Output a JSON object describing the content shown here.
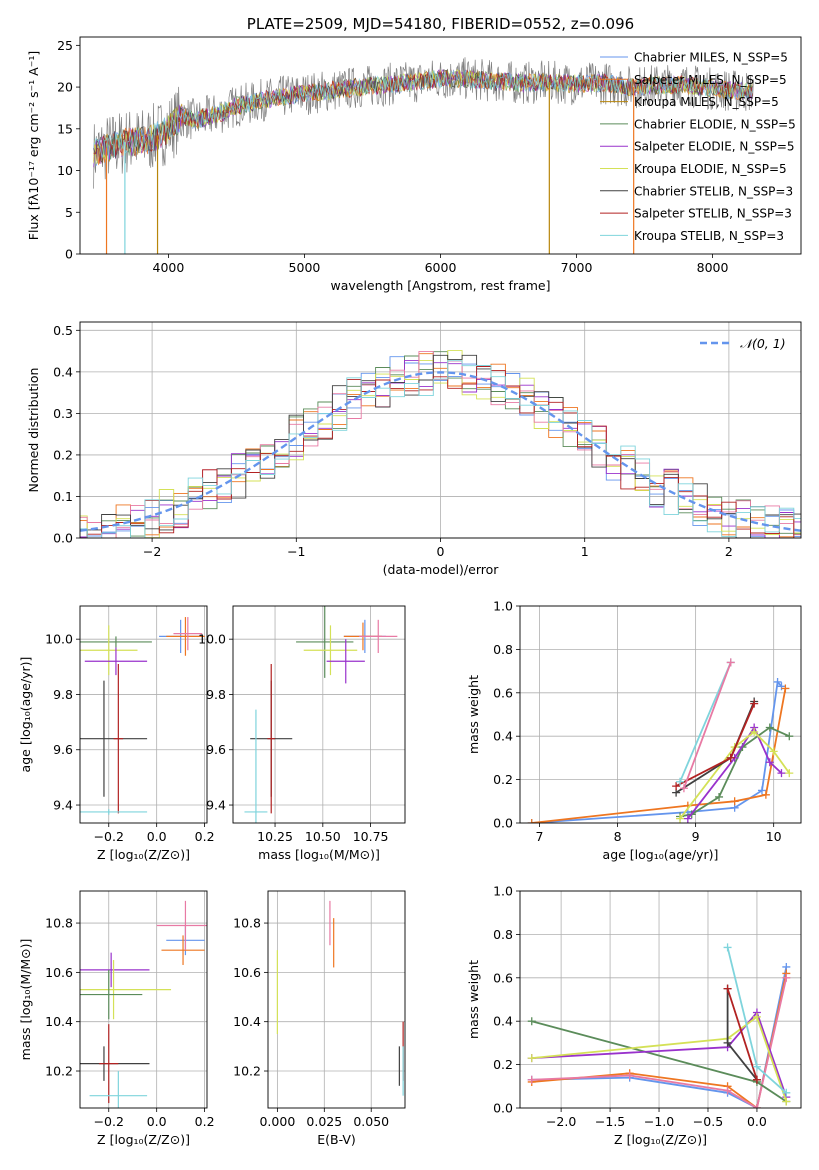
{
  "chart_data": [
    {
      "id": "spectrum",
      "type": "line",
      "title": "PLATE=2509, MJD=54180, FIBERID=0552, z=0.096",
      "xlabel": "wavelength [Angstrom, rest frame]",
      "ylabel": "Flux [fλ10⁻¹⁷ erg cm⁻² s⁻¹ A⁻¹]",
      "xlim": [
        3350,
        8650
      ],
      "ylim": [
        0,
        26
      ],
      "xticks": [
        "4000",
        "5000",
        "6000",
        "7000",
        "8000"
      ],
      "yticks": [
        "0",
        "5",
        "10",
        "15",
        "20",
        "25"
      ],
      "legend_position": "upper-right",
      "data_curve": {
        "color": "#808080",
        "x": [
          3450,
          3500,
          3600,
          3700,
          3800,
          3900,
          4000,
          4100,
          4200,
          4300,
          4400,
          4500,
          4600,
          4700,
          4800,
          4900,
          5000,
          5200,
          5400,
          5600,
          5800,
          6000,
          6200,
          6400,
          6600,
          6800,
          7000,
          7200,
          7400,
          7600,
          7800,
          8000,
          8200,
          8300
        ],
        "y": [
          12,
          12.5,
          13,
          13.5,
          13.5,
          14,
          15,
          16.5,
          16,
          16.5,
          17,
          17.8,
          18,
          18.5,
          18.7,
          19,
          19.2,
          19.6,
          20,
          20.3,
          20.6,
          21,
          21,
          20.7,
          20.5,
          20.6,
          20.4,
          20.5,
          20,
          20.2,
          20.3,
          19.8,
          19.5,
          19.5
        ]
      },
      "series": [
        {
          "name": "Chabrier MILES, N_SSP=5",
          "color": "#6495ed"
        },
        {
          "name": "Salpeter MILES, N_SSP=5",
          "color": "#ee7621"
        },
        {
          "name": "Kroupa MILES, N_SSP=5",
          "color": "#b8860b"
        },
        {
          "name": "Chabrier ELODIE, N_SSP=5",
          "color": "#5b8c5a"
        },
        {
          "name": "Salpeter ELODIE, N_SSP=5",
          "color": "#9932cc"
        },
        {
          "name": "Kroupa ELODIE, N_SSP=5",
          "color": "#d4e157"
        },
        {
          "name": "Chabrier STELIB, N_SSP=3",
          "color": "#404040"
        },
        {
          "name": "Salpeter STELIB, N_SSP=3",
          "color": "#b22222"
        },
        {
          "name": "Kroupa STELIB, N_SSP=3",
          "color": "#7fd4dc"
        }
      ]
    },
    {
      "id": "residuals",
      "type": "histogram",
      "xlabel": "(data-model)/error",
      "ylabel": "Normed distribution",
      "xlim": [
        -2.5,
        2.5
      ],
      "ylim": [
        0,
        0.52
      ],
      "xticks": [
        "−2",
        "−1",
        "0",
        "1",
        "2"
      ],
      "yticks": [
        "0.0",
        "0.1",
        "0.2",
        "0.3",
        "0.4",
        "0.5"
      ],
      "grid": true,
      "legend_position": "upper-right",
      "gaussian_label": "𝒩(0, 1)",
      "gaussian_color": "#6495ed",
      "colors": [
        "#6495ed",
        "#ee7621",
        "#5b8c5a",
        "#9932cc",
        "#d4e157",
        "#e87aa4",
        "#404040",
        "#b22222",
        "#7fd4dc"
      ]
    },
    {
      "id": "age-vs-Z",
      "type": "errorbar",
      "xlabel": "Z [log₁₀(Z/Z⊙)]",
      "ylabel": "age  [log₁₀(age/yr)]",
      "xlim": [
        -0.32,
        0.21
      ],
      "ylim": [
        9.335,
        10.12
      ],
      "xticks": [
        "−0.2",
        "0.0",
        "0.2"
      ],
      "yticks": [
        "9.4",
        "9.6",
        "9.8",
        "10.0"
      ],
      "points": [
        {
          "x": 0.1,
          "y": 10.01,
          "xerr": 0.09,
          "yerr": 0.06,
          "color": "#6495ed"
        },
        {
          "x": 0.12,
          "y": 10.01,
          "xerr": 0.08,
          "yerr": 0.07,
          "color": "#ee7621"
        },
        {
          "x": 0.13,
          "y": 10.02,
          "xerr": 0.06,
          "yerr": 0.06,
          "color": "#e87aa4"
        },
        {
          "x": -0.17,
          "y": 9.99,
          "xerr": 0.15,
          "yerr": 0.02,
          "color": "#5b8c5a"
        },
        {
          "x": -0.2,
          "y": 9.96,
          "xerr": 0.12,
          "yerr": 0.09,
          "color": "#d4e157"
        },
        {
          "x": -0.17,
          "y": 9.92,
          "xerr": 0.13,
          "yerr": 0.05,
          "color": "#9932cc"
        },
        {
          "x": -0.22,
          "y": 9.64,
          "xerr": 0.18,
          "yerr": 0.21,
          "color": "#404040"
        },
        {
          "x": -0.16,
          "y": 9.64,
          "xerr": 0.02,
          "yerr": 0.27,
          "color": "#b22222"
        },
        {
          "x": -0.2,
          "y": 9.375,
          "xerr": 0.16,
          "yerr": 0.01,
          "color": "#7fd4dc"
        }
      ]
    },
    {
      "id": "age-vs-mass",
      "type": "errorbar",
      "xlabel": "mass [log₁₀(M/M⊙)]",
      "ylabel": "",
      "xlim": [
        10.03,
        10.93
      ],
      "ylim": [
        9.335,
        10.12
      ],
      "xticks": [
        "10.25",
        "10.50",
        "10.75"
      ],
      "yticks": [
        "9.4",
        "9.6",
        "9.8",
        "10.0"
      ],
      "points": [
        {
          "x": 10.72,
          "y": 10.01,
          "xerr": 0.11,
          "yerr": 0.06,
          "color": "#6495ed"
        },
        {
          "x": 10.71,
          "y": 10.01,
          "xerr": 0.1,
          "yerr": 0.05,
          "color": "#ee7621"
        },
        {
          "x": 10.79,
          "y": 10.01,
          "xerr": 0.1,
          "yerr": 0.06,
          "color": "#e87aa4"
        },
        {
          "x": 10.51,
          "y": 9.99,
          "xerr": 0.15,
          "yerr": 0.13,
          "color": "#5b8c5a"
        },
        {
          "x": 10.54,
          "y": 9.96,
          "xerr": 0.14,
          "yerr": 0.09,
          "color": "#d4e157"
        },
        {
          "x": 10.62,
          "y": 9.92,
          "xerr": 0.1,
          "yerr": 0.08,
          "color": "#9932cc"
        },
        {
          "x": 10.23,
          "y": 9.64,
          "xerr": 0.11,
          "yerr": 0.21,
          "color": "#404040"
        },
        {
          "x": 10.23,
          "y": 9.64,
          "xerr": 0.02,
          "yerr": 0.27,
          "color": "#b22222"
        },
        {
          "x": 10.15,
          "y": 9.375,
          "xerr": 0.06,
          "yerr": 0.37,
          "color": "#7fd4dc"
        }
      ]
    },
    {
      "id": "weight-vs-age",
      "type": "line",
      "xlabel": "age  [log₁₀(age/yr)]",
      "ylabel": "mass weight",
      "xlim": [
        6.75,
        10.35
      ],
      "ylim": [
        0,
        1
      ],
      "xticks": [
        "7",
        "8",
        "9",
        "10"
      ],
      "yticks": [
        "0.0",
        "0.2",
        "0.4",
        "0.6",
        "0.8",
        "1.0"
      ],
      "series": [
        {
          "color": "#6495ed",
          "x": [
            6.9,
            8.9,
            9.5,
            9.85,
            10.05,
            10.1
          ],
          "y": [
            0.0,
            0.05,
            0.07,
            0.15,
            0.65,
            0.63
          ]
        },
        {
          "color": "#ee7621",
          "x": [
            6.9,
            8.9,
            9.5,
            9.9,
            10.15
          ],
          "y": [
            0.0,
            0.08,
            0.1,
            0.13,
            0.62
          ]
        },
        {
          "color": "#5b8c5a",
          "x": [
            8.8,
            8.95,
            9.3,
            9.6,
            9.95,
            10.2
          ],
          "y": [
            0.03,
            0.04,
            0.12,
            0.35,
            0.44,
            0.4
          ]
        },
        {
          "color": "#9932cc",
          "x": [
            8.9,
            9.5,
            9.75,
            9.95,
            10.1
          ],
          "y": [
            0.02,
            0.3,
            0.44,
            0.28,
            0.23
          ]
        },
        {
          "color": "#d4e157",
          "x": [
            8.8,
            9.5,
            9.75,
            10.0,
            10.2
          ],
          "y": [
            0.02,
            0.35,
            0.42,
            0.33,
            0.23
          ]
        },
        {
          "color": "#404040",
          "x": [
            8.75,
            9.45,
            9.75
          ],
          "y": [
            0.14,
            0.3,
            0.56
          ]
        },
        {
          "color": "#b22222",
          "x": [
            8.75,
            9.45,
            9.75
          ],
          "y": [
            0.17,
            0.3,
            0.55
          ]
        },
        {
          "color": "#7fd4dc",
          "x": [
            8.8,
            9.45
          ],
          "y": [
            0.19,
            0.74
          ]
        },
        {
          "color": "#e87aa4",
          "x": [
            8.85,
            9.45
          ],
          "y": [
            0.16,
            0.74
          ]
        }
      ]
    },
    {
      "id": "mass-vs-Z",
      "type": "errorbar",
      "xlabel": "Z [log₁₀(Z/Z⊙)]",
      "ylabel": "mass [log₁₀(M/M⊙)]",
      "xlim": [
        -0.32,
        0.21
      ],
      "ylim": [
        10.05,
        10.93
      ],
      "xticks": [
        "−0.2",
        "0.0",
        "0.2"
      ],
      "yticks": [
        "10.2",
        "10.4",
        "10.6",
        "10.8"
      ],
      "points": [
        {
          "x": 0.12,
          "y": 10.73,
          "xerr": 0.08,
          "yerr": 0.06,
          "color": "#6495ed"
        },
        {
          "x": 0.11,
          "y": 10.69,
          "xerr": 0.09,
          "yerr": 0.06,
          "color": "#ee7621"
        },
        {
          "x": 0.12,
          "y": 10.79,
          "xerr": 0.12,
          "yerr": 0.1,
          "color": "#e87aa4"
        },
        {
          "x": -0.19,
          "y": 10.61,
          "xerr": 0.16,
          "yerr": 0.07,
          "color": "#9932cc"
        },
        {
          "x": -0.18,
          "y": 10.53,
          "xerr": 0.24,
          "yerr": 0.12,
          "color": "#d4e157"
        },
        {
          "x": -0.2,
          "y": 10.51,
          "xerr": 0.14,
          "yerr": 0.1,
          "color": "#5b8c5a"
        },
        {
          "x": -0.22,
          "y": 10.23,
          "xerr": 0.19,
          "yerr": 0.07,
          "color": "#404040"
        },
        {
          "x": -0.2,
          "y": 10.23,
          "xerr": 0.04,
          "yerr": 0.16,
          "color": "#b22222"
        },
        {
          "x": -0.16,
          "y": 10.1,
          "xerr": 0.12,
          "yerr": 0.1,
          "color": "#7fd4dc"
        }
      ]
    },
    {
      "id": "mass-vs-EBV",
      "type": "errorbar",
      "xlabel": "E(B-V)",
      "ylabel": "",
      "xlim": [
        -0.005,
        0.068
      ],
      "ylim": [
        10.05,
        10.93
      ],
      "xticks": [
        "0.000",
        "0.025",
        "0.050"
      ],
      "yticks": [
        "10.2",
        "10.4",
        "10.6",
        "10.8"
      ],
      "points": [
        {
          "x": 0.0,
          "y": 10.52,
          "xerr": 0,
          "yerr": 0.17,
          "color": "#d4e157"
        },
        {
          "x": 0.028,
          "y": 10.8,
          "xerr": 0,
          "yerr": 0.09,
          "color": "#e87aa4"
        },
        {
          "x": 0.03,
          "y": 10.72,
          "xerr": 0,
          "yerr": 0.1,
          "color": "#ee7621"
        },
        {
          "x": 0.065,
          "y": 10.22,
          "xerr": 0,
          "yerr": 0.08,
          "color": "#404040"
        },
        {
          "x": 0.067,
          "y": 10.28,
          "xerr": 0,
          "yerr": 0.12,
          "color": "#b22222"
        },
        {
          "x": 0.067,
          "y": 10.2,
          "xerr": 0,
          "yerr": 0.1,
          "color": "#7fd4dc"
        }
      ]
    },
    {
      "id": "weight-vs-Z",
      "type": "line",
      "xlabel": "Z [log₁₀(Z/Z⊙)]",
      "ylabel": "mass weight",
      "xlim": [
        -2.42,
        0.45
      ],
      "ylim": [
        0,
        1
      ],
      "xticks": [
        "−2.0",
        "−1.5",
        "−1.0",
        "−0.5",
        "0.0"
      ],
      "yticks": [
        "0.0",
        "0.2",
        "0.4",
        "0.6",
        "0.8",
        "1.0"
      ],
      "series": [
        {
          "color": "#6495ed",
          "x": [
            -2.3,
            -1.3,
            -0.3,
            0.0,
            0.3
          ],
          "y": [
            0.13,
            0.14,
            0.07,
            0.0,
            0.65
          ]
        },
        {
          "color": "#ee7621",
          "x": [
            -2.3,
            -1.3,
            -0.3,
            0.0,
            0.3
          ],
          "y": [
            0.12,
            0.16,
            0.1,
            0.0,
            0.62
          ]
        },
        {
          "color": "#e87aa4",
          "x": [
            -2.3,
            -1.3,
            -0.3,
            0.0,
            0.3
          ],
          "y": [
            0.13,
            0.15,
            0.08,
            0.0,
            0.6
          ]
        },
        {
          "color": "#5b8c5a",
          "x": [
            -2.3,
            0.0,
            0.3
          ],
          "y": [
            0.4,
            0.12,
            0.03
          ]
        },
        {
          "color": "#9932cc",
          "x": [
            -2.3,
            -0.3,
            0.0,
            0.3
          ],
          "y": [
            0.23,
            0.28,
            0.44,
            0.05
          ]
        },
        {
          "color": "#d4e157",
          "x": [
            -2.3,
            -0.3,
            0.0,
            0.3
          ],
          "y": [
            0.23,
            0.32,
            0.42,
            0.03
          ]
        },
        {
          "color": "#404040",
          "x": [
            -0.3,
            -0.3,
            0.0
          ],
          "y": [
            0.55,
            0.3,
            0.13
          ]
        },
        {
          "color": "#b22222",
          "x": [
            -0.3,
            0.0
          ],
          "y": [
            0.55,
            0.13
          ]
        },
        {
          "color": "#7fd4dc",
          "x": [
            -0.3,
            0.0,
            0.3
          ],
          "y": [
            0.74,
            0.19,
            0.07
          ]
        }
      ]
    }
  ]
}
